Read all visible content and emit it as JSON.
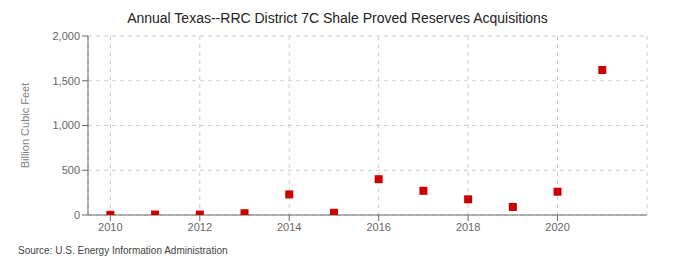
{
  "chart_data": {
    "type": "scatter",
    "title": "Annual Texas--RRC District 7C Shale Proved Reserves Acquisitions",
    "y_label": "Billion Cubic Feet",
    "annotations": [
      "Source: U.S. Energy Information Administration"
    ],
    "x": [
      2010,
      2011,
      2012,
      2013,
      2014,
      2015,
      2016,
      2017,
      2018,
      2019,
      2020,
      2021
    ],
    "values": [
      2,
      5,
      5,
      20,
      230,
      25,
      400,
      270,
      175,
      90,
      260,
      1620
    ],
    "color": "#cc0000",
    "marker": "square",
    "grid": true,
    "xlim": [
      2009.5,
      2022.0
    ],
    "ylim": [
      0,
      2000
    ],
    "xticks": [
      2010,
      2012,
      2014,
      2016,
      2018,
      2020
    ],
    "yticks": [
      0,
      500,
      {
        "value": 1000,
        "label": "1,000"
      },
      {
        "value": 1500,
        "label": "1,500"
      },
      {
        "value": 2000,
        "label": "2,000"
      }
    ]
  }
}
